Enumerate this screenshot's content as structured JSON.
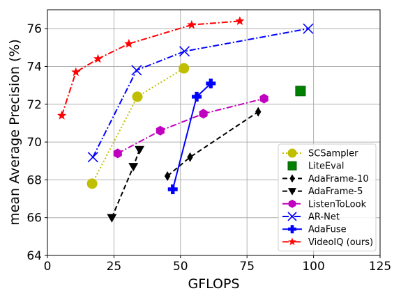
{
  "chart_data": {
    "type": "line",
    "xlabel": "GFLOPS",
    "ylabel": "mean Average Precision (%)",
    "xlim": [
      0,
      125
    ],
    "ylim": [
      64,
      77
    ],
    "xticks": [
      0,
      25,
      50,
      75,
      100,
      125
    ],
    "yticks": [
      64,
      66,
      68,
      70,
      72,
      74,
      76
    ],
    "xtick_labels": [
      "0",
      "25",
      "50",
      "75",
      "100",
      "125"
    ],
    "ytick_labels": [
      "64",
      "66",
      "68",
      "70",
      "72",
      "74",
      "76"
    ],
    "grid": true,
    "legend_position": "lower-right",
    "series": [
      {
        "name": "SCSampler",
        "color": "#bfbf00",
        "marker": "circle",
        "line": "dotted",
        "x": [
          16.8,
          33.8,
          51.3
        ],
        "y": [
          67.8,
          72.4,
          73.9
        ]
      },
      {
        "name": "LiteEval",
        "color": "#008000",
        "marker": "square",
        "line": "none",
        "x": [
          95.1
        ],
        "y": [
          72.7
        ]
      },
      {
        "name": "AdaFrame-10",
        "color": "#000000",
        "marker": "thin-diamond",
        "line": "dashed",
        "x": [
          45.1,
          53.6,
          79.2
        ],
        "y": [
          68.2,
          69.2,
          71.6
        ]
      },
      {
        "name": "AdaFrame-5",
        "color": "#000000",
        "marker": "triangle-down",
        "line": "dashed",
        "x": [
          24.2,
          32.3,
          34.6
        ],
        "y": [
          66.0,
          68.7,
          69.6
        ]
      },
      {
        "name": "ListenToLook",
        "color": "#bf00bf",
        "marker": "hexagon",
        "line": "dashdot",
        "x": [
          26.4,
          42.4,
          58.6,
          81.4
        ],
        "y": [
          69.4,
          70.6,
          71.5,
          72.3
        ]
      },
      {
        "name": "AR-Net",
        "color": "#0000ff",
        "marker": "x",
        "line": "dashdot",
        "x": [
          17.1,
          33.5,
          51.5,
          98.0
        ],
        "y": [
          69.2,
          73.8,
          74.8,
          76.0
        ]
      },
      {
        "name": "AdaFuse",
        "color": "#0000ff",
        "marker": "plus",
        "line": "solid",
        "x": [
          47.1,
          56.1,
          61.4
        ],
        "y": [
          67.5,
          72.4,
          73.1
        ]
      },
      {
        "name": "VideoIQ (ours)",
        "color": "#ff0000",
        "marker": "star",
        "line": "dashdot",
        "x": [
          5.4,
          10.7,
          19.0,
          30.6,
          54.2,
          72.3
        ],
        "y": [
          71.4,
          73.7,
          74.4,
          75.2,
          76.2,
          76.4
        ]
      }
    ]
  }
}
